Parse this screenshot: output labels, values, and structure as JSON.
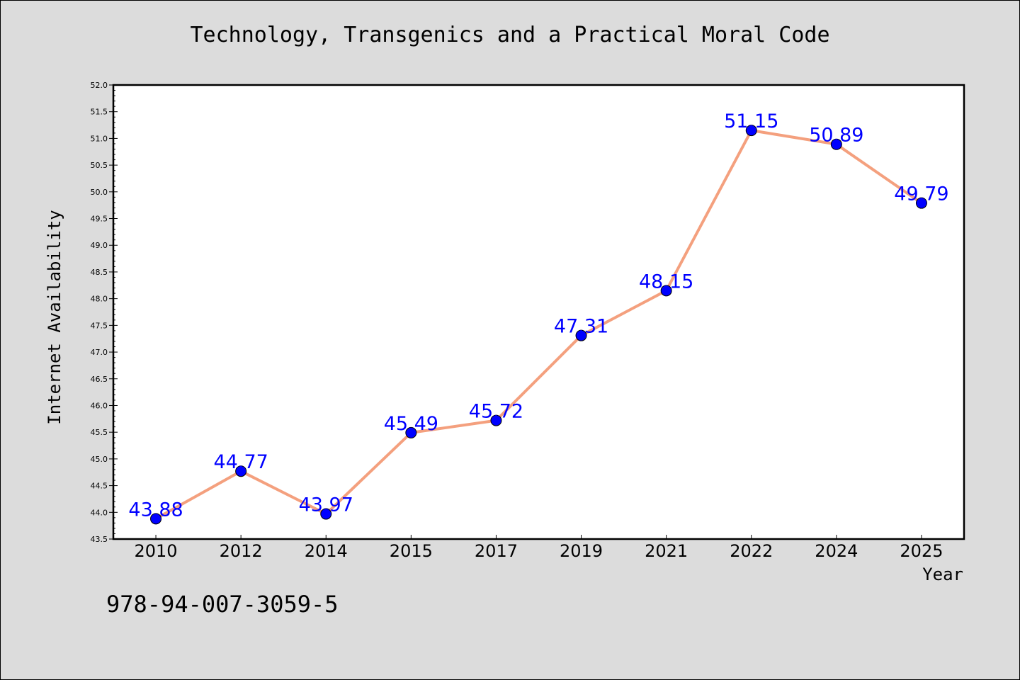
{
  "chart_data": {
    "type": "line",
    "title": "Technology, Transgenics and a Practical Moral Code",
    "xlabel": "Year",
    "ylabel": "Internet Availability",
    "categories": [
      "2010",
      "2012",
      "2014",
      "2015",
      "2017",
      "2019",
      "2021",
      "2022",
      "2024",
      "2025"
    ],
    "series": [
      {
        "values": [
          43.88,
          44.77,
          43.97,
          45.49,
          45.72,
          47.31,
          48.15,
          51.15,
          50.89,
          49.79
        ],
        "data_labels": [
          "43.88",
          "44.77",
          "43.97",
          "45.49",
          "45.72",
          "47.31",
          "48.15",
          "51.15",
          "50.89",
          "49.79"
        ]
      }
    ],
    "ylim": [
      43.5,
      52.0
    ],
    "yticks": [
      "43.5",
      "44.0",
      "44.5",
      "45.0",
      "45.5",
      "46.0",
      "46.5",
      "47.0",
      "47.5",
      "48.0",
      "48.5",
      "49.0",
      "49.5",
      "50.0",
      "50.5",
      "51.0",
      "51.5",
      "52.0"
    ],
    "grid": false,
    "line_color": "#f4a07e",
    "marker_color": "#0000ff",
    "label_color": "#0000ff",
    "plot_background": "#ffffff",
    "page_background": "#dcdcdc"
  },
  "footer": {
    "isbn": "978-94-007-3059-5"
  }
}
